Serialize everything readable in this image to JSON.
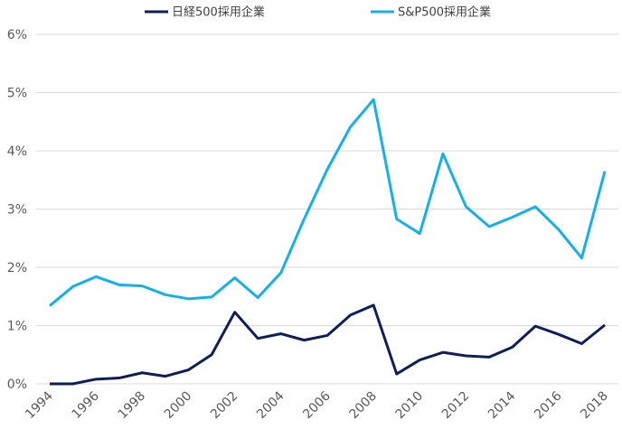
{
  "chart_data": {
    "type": "line",
    "x": [
      1994,
      1995,
      1996,
      1997,
      1998,
      1999,
      2000,
      2001,
      2002,
      2003,
      2004,
      2005,
      2006,
      2007,
      2008,
      2009,
      2010,
      2011,
      2012,
      2013,
      2014,
      2015,
      2016,
      2017,
      2018
    ],
    "series": [
      {
        "name": "日経500採用企業",
        "color": "#0f1e5a",
        "values": [
          0.0,
          0.0,
          0.08,
          0.1,
          0.19,
          0.13,
          0.24,
          0.5,
          1.23,
          0.78,
          0.86,
          0.75,
          0.83,
          1.18,
          1.35,
          0.17,
          0.41,
          0.54,
          0.48,
          0.46,
          0.63,
          0.99,
          0.85,
          0.69,
          1.01
        ]
      },
      {
        "name": "S&P500採用企業",
        "color": "#16b0e8",
        "values": [
          1.34,
          1.67,
          1.84,
          1.7,
          1.68,
          1.53,
          1.46,
          1.49,
          1.82,
          1.48,
          1.91,
          2.83,
          3.68,
          4.41,
          4.88,
          2.83,
          2.58,
          3.95,
          3.04,
          2.7,
          2.86,
          3.04,
          2.65,
          2.16,
          3.65
        ]
      }
    ],
    "xlim": [
      1994,
      2018
    ],
    "xticks": [
      1994,
      1996,
      1998,
      2000,
      2002,
      2004,
      2006,
      2008,
      2010,
      2012,
      2014,
      2016,
      2018
    ],
    "ylim": [
      0,
      6
    ],
    "yticks": [
      {
        "value": 0,
        "label": "0%"
      },
      {
        "value": 1,
        "label": "1%"
      },
      {
        "value": 2,
        "label": "2%"
      },
      {
        "value": 3,
        "label": "3%"
      },
      {
        "value": 4,
        "label": "4%"
      },
      {
        "value": 5,
        "label": "5%"
      },
      {
        "value": 6,
        "label": "6%"
      }
    ],
    "grid": true
  }
}
